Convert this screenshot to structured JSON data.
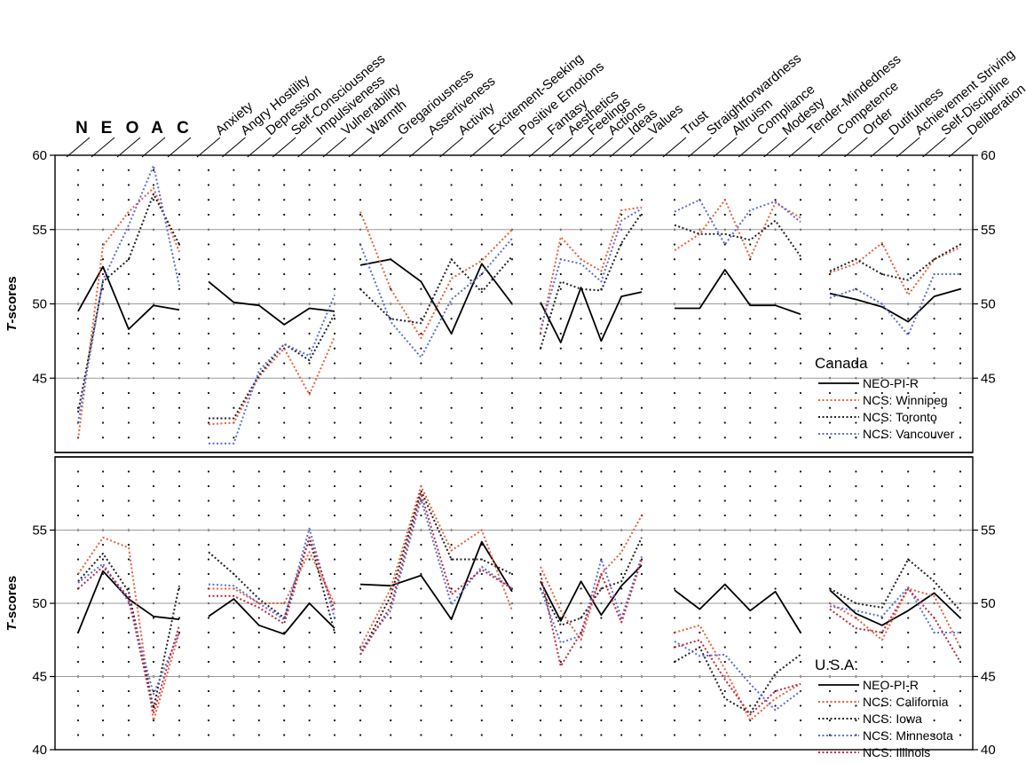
{
  "chart_data": [
    {
      "type": "line",
      "panel": "top",
      "ylabel": "T-scores",
      "ylim": [
        40,
        60
      ],
      "yticks": [
        45,
        50,
        55,
        60
      ],
      "legend_title": "Canada",
      "legend_position": "right",
      "series": [
        {
          "name": "NEO-PI-R",
          "color": "#000000",
          "style": "solid",
          "values": [
            49.5,
            52.5,
            48.3,
            49.9,
            49.6,
            51.5,
            50.1,
            49.9,
            48.6,
            49.7,
            49.5,
            52.6,
            53.0,
            51.5,
            48.0,
            52.7,
            50.0,
            50.1,
            47.4,
            51.1,
            47.5,
            50.5,
            50.8,
            49.7,
            49.7,
            52.3,
            49.9,
            49.9,
            49.3,
            50.7,
            50.3,
            49.8,
            48.8,
            50.5,
            51.0
          ]
        },
        {
          "name": "NCS: Winnipeg",
          "color": "#e8613a",
          "style": "dotted",
          "values": [
            40.9,
            53.9,
            56.2,
            57.8,
            53.5,
            41.9,
            42.0,
            45.1,
            47.0,
            43.9,
            47.8,
            56.2,
            51.0,
            47.7,
            51.7,
            52.9,
            55.0,
            48.0,
            54.5,
            53.0,
            52.2,
            56.3,
            56.5,
            53.6,
            54.7,
            57.0,
            53.1,
            56.8,
            55.8,
            52.1,
            52.7,
            54.1,
            50.6,
            53.0,
            53.8
          ]
        },
        {
          "name": "NCS: Toronto",
          "color": "#222222",
          "style": "dotted",
          "values": [
            42.7,
            51.5,
            53.0,
            57.4,
            54.0,
            42.3,
            42.3,
            45.2,
            47.3,
            46.2,
            49.3,
            51.0,
            49.0,
            48.7,
            53.0,
            50.8,
            53.2,
            47.0,
            51.5,
            51.0,
            50.9,
            54.1,
            56.1,
            55.3,
            54.7,
            54.7,
            54.3,
            55.6,
            53.2,
            52.2,
            53.0,
            52.0,
            51.6,
            53.0,
            54.0
          ]
        },
        {
          "name": "NCS: Vancouver",
          "color": "#5b6fd6",
          "style": "dotted",
          "values": [
            42.0,
            51.6,
            55.3,
            59.3,
            51.2,
            40.6,
            40.6,
            45.5,
            47.3,
            46.5,
            50.6,
            54.0,
            48.8,
            46.4,
            50.3,
            52.0,
            54.4,
            48.3,
            53.0,
            52.7,
            51.5,
            55.6,
            56.4,
            56.2,
            57.0,
            54.0,
            56.3,
            56.9,
            55.5,
            50.4,
            51.0,
            50.0,
            47.9,
            52.0,
            52.0
          ]
        }
      ]
    },
    {
      "type": "line",
      "panel": "bottom",
      "ylabel": "T-scores",
      "ylim": [
        40,
        60
      ],
      "yticks": [
        40,
        45,
        50,
        55
      ],
      "legend_title": "U.S.A.",
      "legend_position": "right",
      "series": [
        {
          "name": "NEO-PI-R",
          "color": "#000000",
          "style": "solid",
          "values": [
            48.0,
            52.2,
            50.3,
            49.1,
            48.9,
            49.1,
            50.3,
            48.5,
            47.9,
            50.0,
            48.3,
            51.3,
            51.2,
            51.9,
            48.9,
            54.2,
            50.8,
            51.5,
            48.8,
            51.5,
            49.2,
            51.2,
            52.6,
            50.9,
            49.6,
            51.3,
            49.5,
            50.8,
            48.0,
            50.9,
            49.3,
            48.5,
            49.5,
            50.7,
            49.0
          ]
        },
        {
          "name": "NCS: California",
          "color": "#e8613a",
          "style": "dotted",
          "values": [
            52.0,
            54.5,
            53.8,
            42.0,
            48.0,
            51.0,
            51.0,
            50.0,
            50.0,
            53.5,
            50.0,
            47.0,
            51.0,
            58.0,
            53.6,
            55.0,
            49.5,
            52.5,
            49.5,
            47.5,
            52.0,
            53.5,
            56.0,
            48.0,
            48.5,
            45.5,
            42.0,
            43.5,
            44.5,
            50.0,
            49.0,
            47.5,
            51.0,
            50.5,
            47.0
          ]
        },
        {
          "name": "NCS: Iowa",
          "color": "#222222",
          "style": "dotted",
          "values": [
            51.5,
            53.4,
            50.8,
            42.8,
            51.2,
            53.5,
            52.0,
            50.3,
            49.0,
            54.5,
            48.0,
            46.5,
            50.5,
            57.7,
            53.0,
            53.0,
            52.0,
            51.0,
            48.5,
            49.0,
            51.0,
            51.5,
            54.5,
            46.0,
            47.0,
            43.5,
            42.5,
            45.2,
            46.5,
            51.0,
            50.0,
            49.7,
            53.0,
            51.5,
            49.5
          ]
        },
        {
          "name": "NCS: Minnesota",
          "color": "#5b6fd6",
          "style": "dotted",
          "values": [
            51.4,
            52.7,
            50.1,
            43.8,
            48.0,
            51.3,
            51.2,
            50.0,
            48.9,
            55.1,
            49.0,
            46.8,
            49.5,
            57.1,
            49.9,
            52.5,
            51.0,
            51.0,
            47.3,
            47.8,
            53.0,
            49.0,
            53.2,
            47.4,
            46.4,
            46.5,
            44.5,
            42.7,
            44.0,
            49.8,
            49.5,
            49.1,
            51.1,
            48.0,
            48.0
          ]
        },
        {
          "name": "NCS: Illinois",
          "color": "#c0283c",
          "style": "dotted",
          "values": [
            51.0,
            52.5,
            50.4,
            42.5,
            48.5,
            50.5,
            50.5,
            49.7,
            48.6,
            54.5,
            49.5,
            46.5,
            49.8,
            57.5,
            50.6,
            52.3,
            51.0,
            52.0,
            45.7,
            48.0,
            52.0,
            48.7,
            53.0,
            47.0,
            47.5,
            44.8,
            42.4,
            44.0,
            44.5,
            49.6,
            48.3,
            48.0,
            51.0,
            49.0,
            46.0
          ]
        }
      ]
    }
  ],
  "domains": [
    "N",
    "E",
    "O",
    "A",
    "C"
  ],
  "facets": [
    "Anxiety",
    "Angry Hostility",
    "Depression",
    "Self-Consciousness",
    "Impulsiveness",
    "Vulnerability",
    "Warmth",
    "Gregariousness",
    "Assertiveness",
    "Activity",
    "Excitement-Seeking",
    "Positive Emotions",
    "Fantasy",
    "Aesthetics",
    "Feelings",
    "Actions",
    "Ideas",
    "Values",
    "Trust",
    "Straightforwardness",
    "Altruism",
    "Compliance",
    "Modesty",
    "Tender-Mindedness",
    "Competence",
    "Order",
    "Dutifulness",
    "Achievement Striving",
    "Self-Discipline",
    "Deliberation"
  ]
}
